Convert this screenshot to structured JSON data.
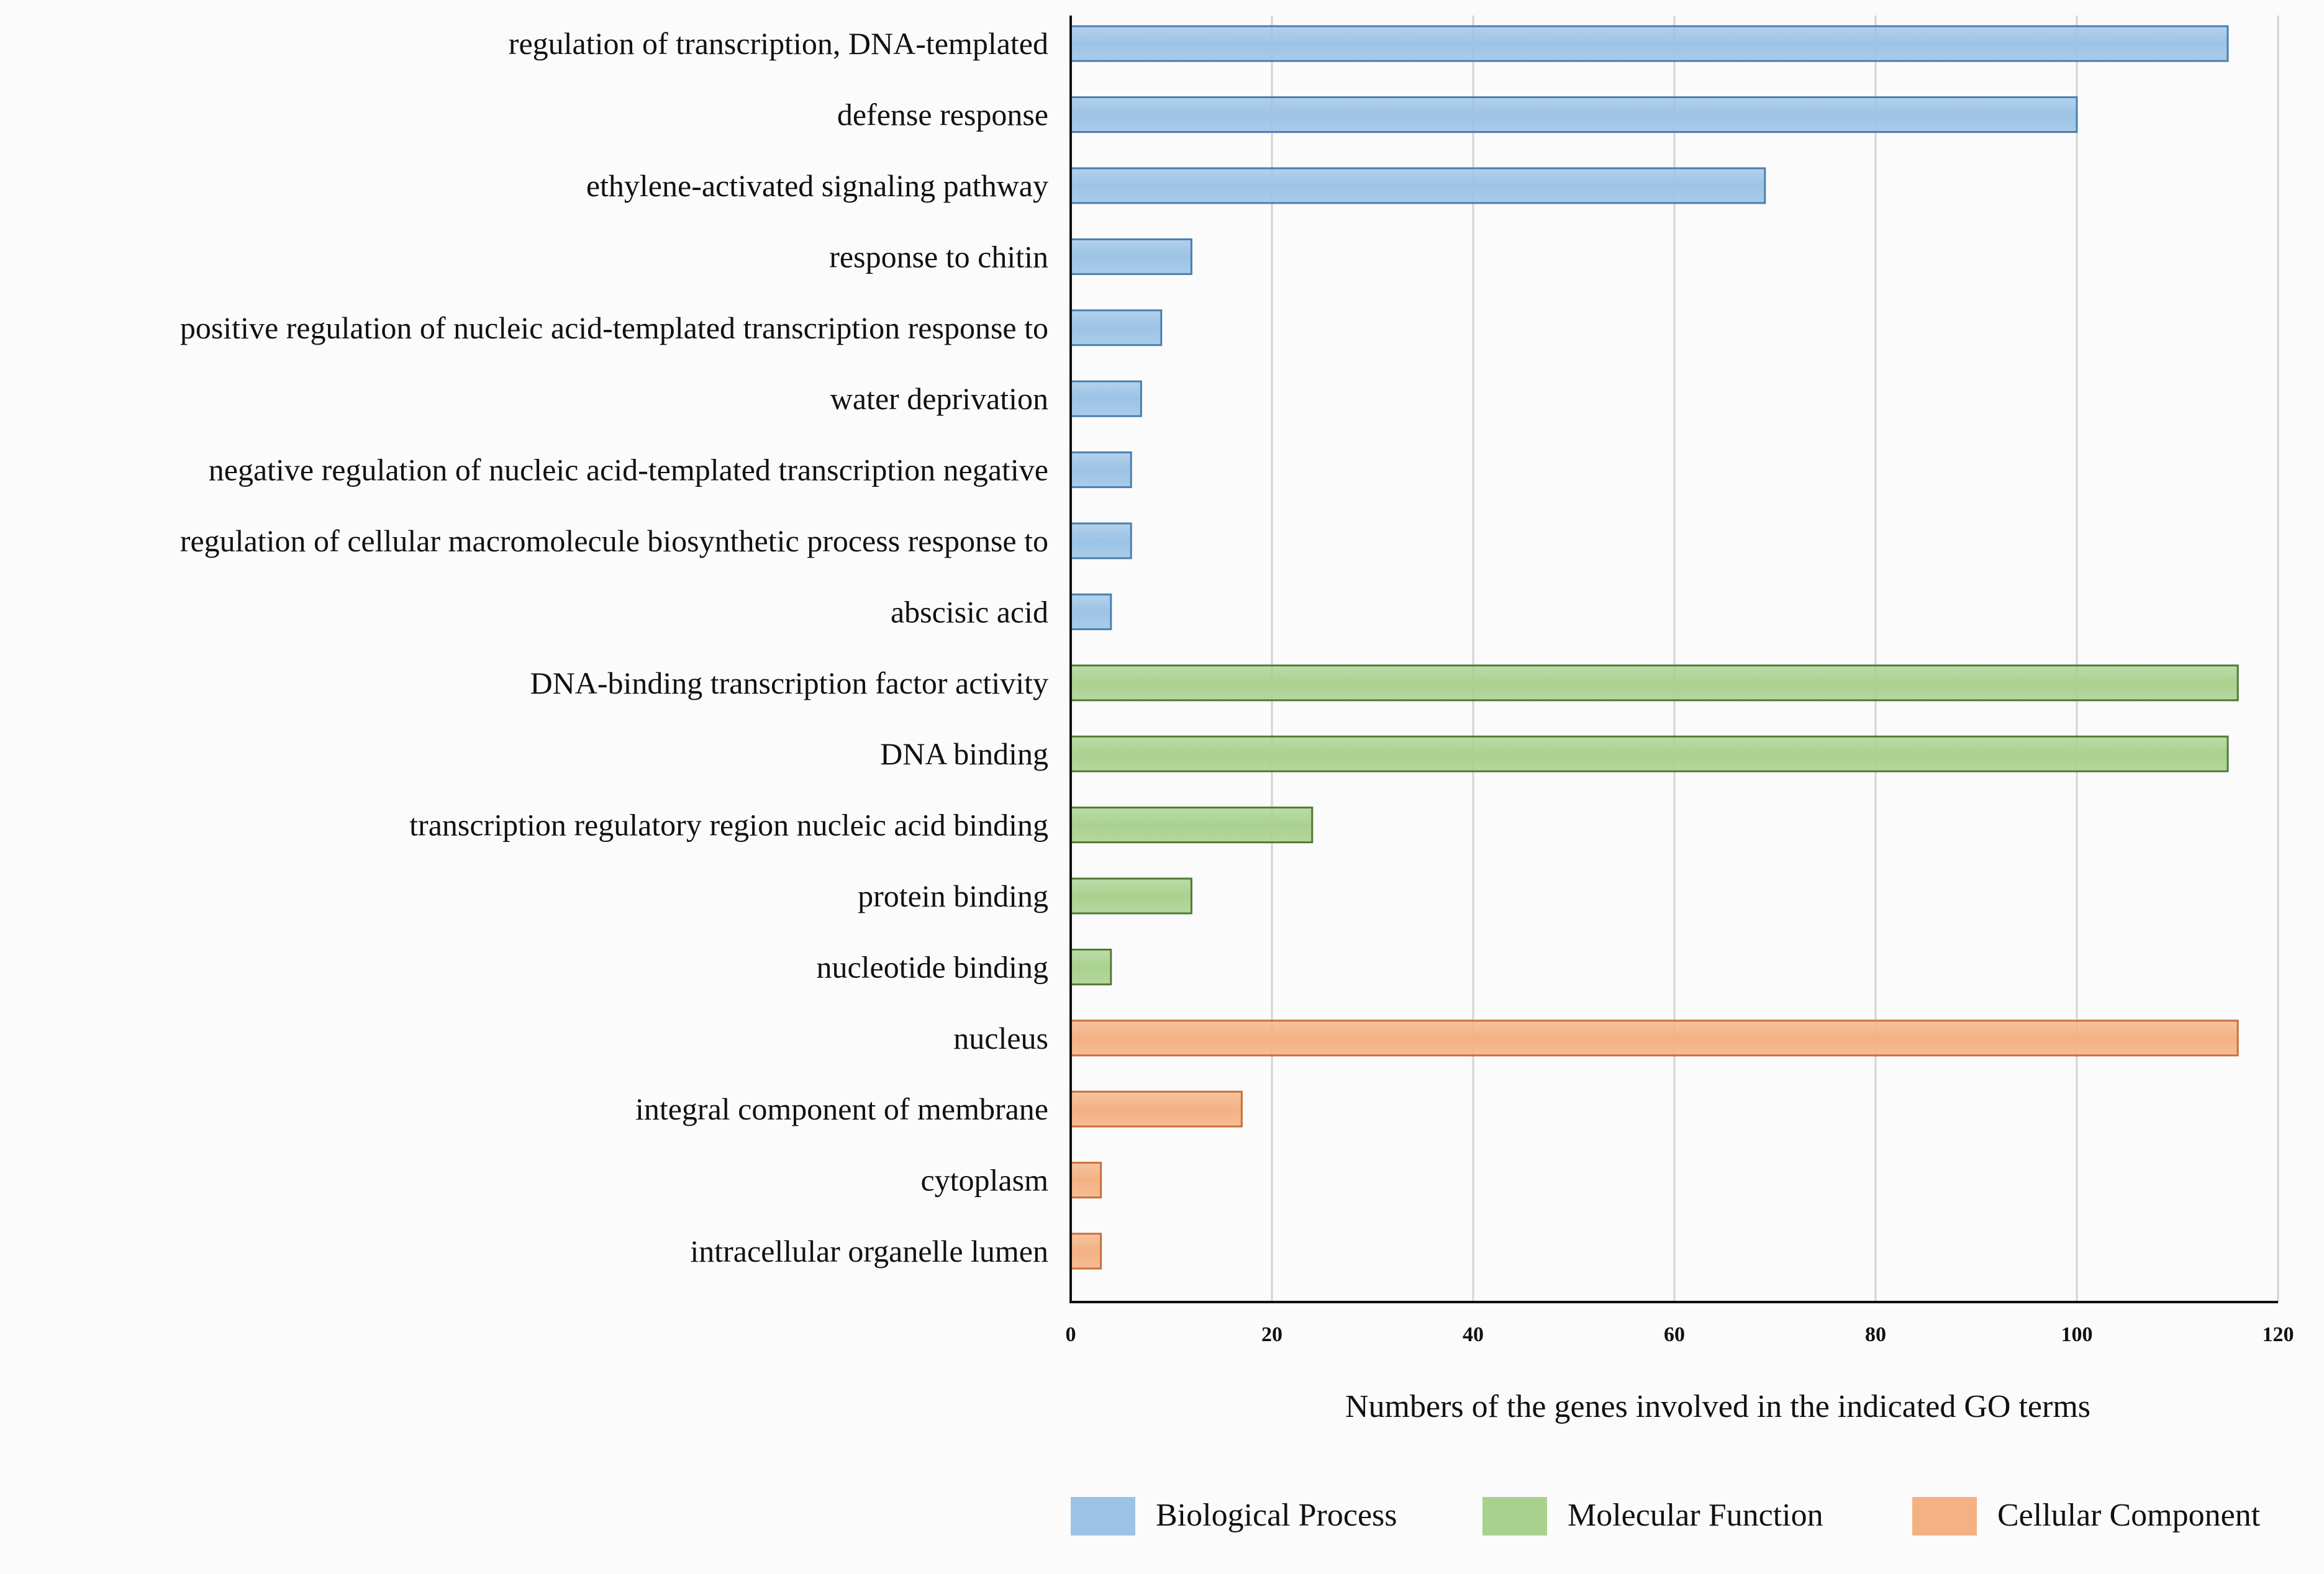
{
  "chart_data": {
    "type": "bar",
    "orientation": "horizontal",
    "title": "",
    "xlabel": "Numbers of the genes involved in the indicated GO terms",
    "ylabel": "",
    "xlim": [
      0,
      120
    ],
    "xticks": [
      0,
      20,
      40,
      60,
      80,
      100,
      120
    ],
    "grid": true,
    "legend_position": "bottom-right",
    "series": [
      {
        "name": "Biological Process",
        "color": "#9cc3e6",
        "edge": "#4a7fb0"
      },
      {
        "name": "Molecular Function",
        "color": "#a9d18e",
        "edge": "#4f7a35"
      },
      {
        "name": "Cellular Component",
        "color": "#f4b183",
        "edge": "#c8703a"
      }
    ],
    "bars": [
      {
        "label": "regulation of transcription, DNA-templated",
        "value": 115,
        "series": 0
      },
      {
        "label": "defense response",
        "value": 100,
        "series": 0
      },
      {
        "label": "ethylene-activated signaling pathway",
        "value": 69,
        "series": 0
      },
      {
        "label": "response to chitin",
        "value": 12,
        "series": 0
      },
      {
        "label": "positive regulation of nucleic acid-templated transcription response to",
        "value": 9,
        "series": 0
      },
      {
        "label": "water deprivation",
        "value": 7,
        "series": 0
      },
      {
        "label": "negative regulation of nucleic acid-templated transcription negative",
        "value": 6,
        "series": 0
      },
      {
        "label": "regulation of cellular macromolecule biosynthetic process response to",
        "value": 6,
        "series": 0
      },
      {
        "label": "abscisic acid",
        "value": 4,
        "series": 0
      },
      {
        "label": "DNA-binding transcription factor activity",
        "value": 116,
        "series": 1
      },
      {
        "label": "DNA binding",
        "value": 115,
        "series": 1
      },
      {
        "label": "transcription regulatory region nucleic acid binding",
        "value": 24,
        "series": 1
      },
      {
        "label": "protein binding",
        "value": 12,
        "series": 1
      },
      {
        "label": "nucleotide binding",
        "value": 4,
        "series": 1
      },
      {
        "label": "nucleus",
        "value": 116,
        "series": 2
      },
      {
        "label": "integral component of membrane",
        "value": 17,
        "series": 2
      },
      {
        "label": "cytoplasm",
        "value": 3,
        "series": 2
      },
      {
        "label": "intracellular organelle lumen",
        "value": 3,
        "series": 2
      }
    ]
  }
}
